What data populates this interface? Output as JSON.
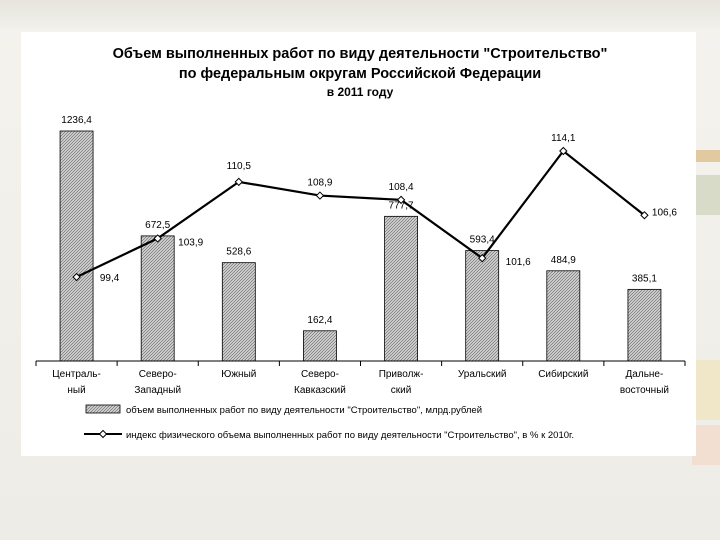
{
  "chart_data": {
    "type": "bar",
    "title_line1": "Объем выполненных работ по виду деятельности \"Строительство\"",
    "title_line2": "по федеральным округам Российской Федерации",
    "subtitle": "в 2011 году",
    "categories": [
      [
        "Централь-",
        "ный"
      ],
      [
        "Северо-",
        "Западный"
      ],
      [
        "Южный",
        ""
      ],
      [
        "Северо-",
        "Кавказский"
      ],
      [
        "Приволж-",
        "ский"
      ],
      [
        "Уральский",
        ""
      ],
      [
        "Сибирский",
        ""
      ],
      [
        "Дальне-",
        "восточный"
      ]
    ],
    "bar_labels": [
      "1236,4",
      "672,5",
      "528,6",
      "162,4",
      "777,7",
      "593,4",
      "484,9",
      "385,1"
    ],
    "line_labels": [
      "99,4",
      "103,9",
      "110,5",
      "108,9",
      "108,4",
      "101,6",
      "114,1",
      "106,6"
    ],
    "series": [
      {
        "name": "объем выполненных работ по виду деятельности \"Строительство\", млрд.рублей",
        "type": "bar",
        "axis": "left",
        "values": [
          1236.4,
          672.5,
          528.6,
          162.4,
          777.7,
          593.4,
          484.9,
          385.1
        ],
        "color": "#9a9a9a"
      },
      {
        "name": "индекс физического объема выполненных работ по виду деятельности \"Строительство\", в % к 2010г.",
        "type": "line",
        "axis": "right",
        "values": [
          99.4,
          103.9,
          110.5,
          108.9,
          108.4,
          101.6,
          114.1,
          106.6
        ],
        "color": "#000000"
      }
    ],
    "ylim_left": [
      0,
      1250
    ],
    "ylim_right": [
      90,
      117
    ],
    "grid": false,
    "legend_position": "bottom"
  }
}
